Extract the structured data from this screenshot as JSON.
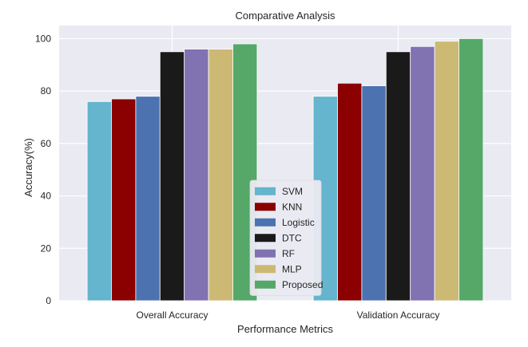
{
  "chart_data": {
    "type": "bar",
    "title": "Comparative Analysis",
    "xlabel": "Performance Metrics",
    "ylabel": "Accuracy(%)",
    "ylim": [
      0,
      105
    ],
    "yticks": [
      0,
      20,
      40,
      60,
      80,
      100
    ],
    "grid": true,
    "legend_position": "bottom-center",
    "categories": [
      "Overall Accuracy",
      "Validation Accuracy"
    ],
    "series": [
      {
        "name": "SVM",
        "color": "#64b5cd",
        "values": [
          76,
          78
        ]
      },
      {
        "name": "KNN",
        "color": "#8b0000",
        "values": [
          77,
          83
        ]
      },
      {
        "name": "Logistic",
        "color": "#4c72b0",
        "values": [
          78,
          82
        ]
      },
      {
        "name": "DTC",
        "color": "#1a1a1a",
        "values": [
          95,
          95
        ]
      },
      {
        "name": "RF",
        "color": "#8172b2",
        "values": [
          96,
          97
        ]
      },
      {
        "name": "MLP",
        "color": "#ccb974",
        "values": [
          96,
          99
        ]
      },
      {
        "name": "Proposed",
        "color": "#55a868",
        "values": [
          98,
          100
        ]
      }
    ]
  }
}
